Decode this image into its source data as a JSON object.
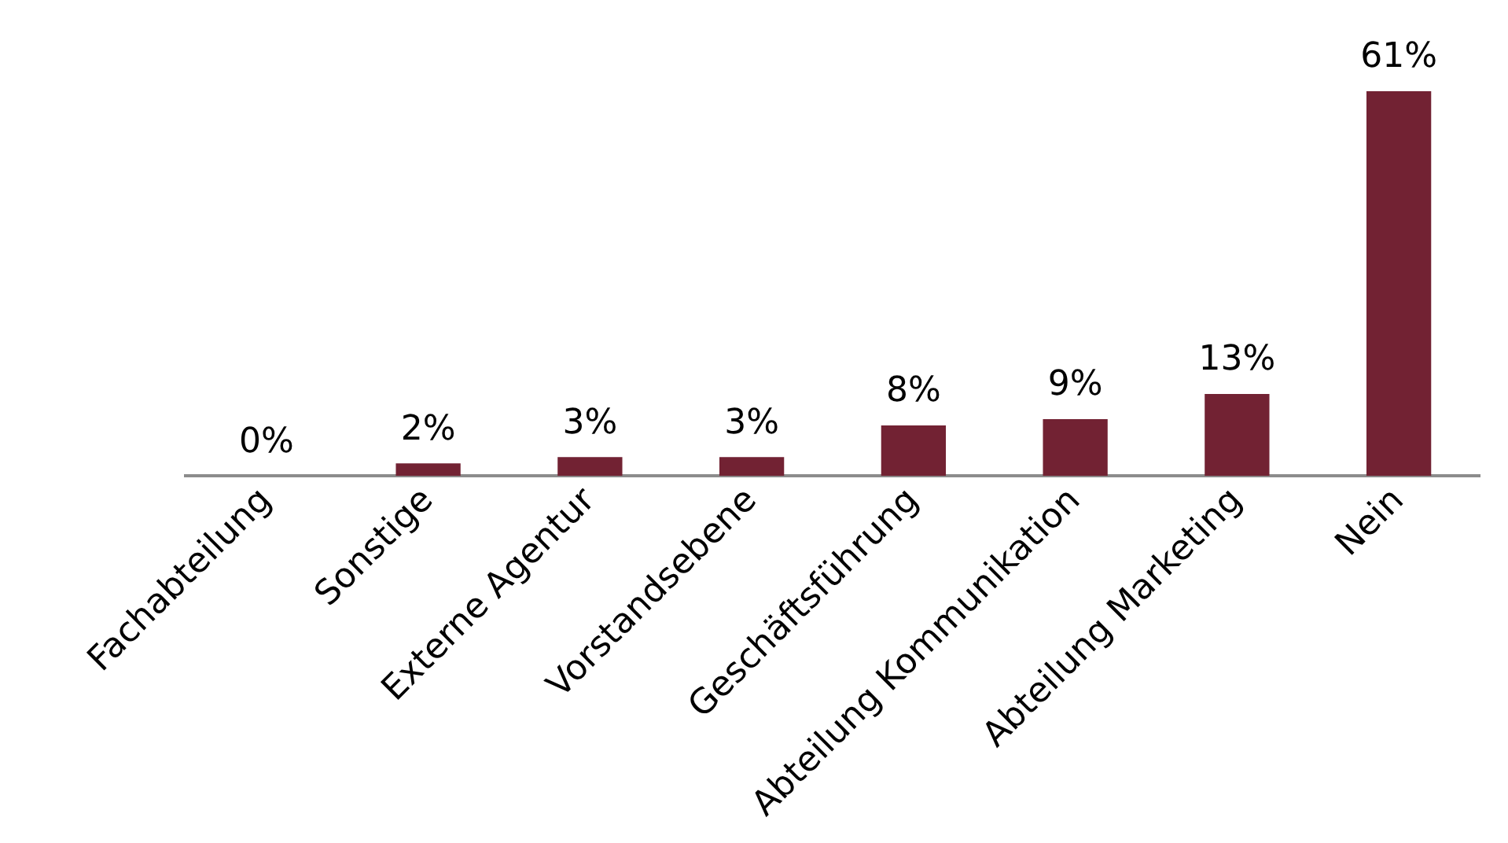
{
  "chart_data": {
    "type": "bar",
    "categories": [
      "Fachabteilung",
      "Sonstige",
      "Externe Agentur",
      "Vorstandsebene",
      "Geschäftsführung",
      "Abteilung Kommunikation",
      "Abteilung Marketing",
      "Nein"
    ],
    "values": [
      0,
      2,
      3,
      3,
      8,
      9,
      13,
      61
    ],
    "value_labels": [
      "0%",
      "2%",
      "3%",
      "3%",
      "8%",
      "9%",
      "13%",
      "61%"
    ],
    "color": "#722233",
    "grid": false,
    "legend": false
  }
}
